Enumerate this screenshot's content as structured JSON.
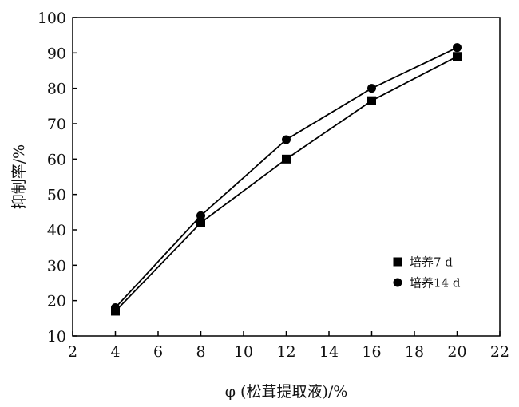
{
  "chart_data": {
    "type": "line",
    "xlabel": "φ (松茸提取液)/%",
    "ylabel": "抑制率/%",
    "xlim": [
      2,
      22
    ],
    "ylim": [
      10,
      100
    ],
    "xticks": [
      2,
      4,
      6,
      8,
      10,
      12,
      14,
      16,
      18,
      20,
      22
    ],
    "yticks": [
      10,
      20,
      30,
      40,
      50,
      60,
      70,
      80,
      90,
      100
    ],
    "grid": false,
    "legend_position": "lower-right",
    "series": [
      {
        "name": "培养7 d",
        "marker": "square",
        "color": "#000000",
        "x": [
          4,
          8,
          12,
          16,
          20
        ],
        "y": [
          17,
          42,
          60,
          76.5,
          89
        ]
      },
      {
        "name": "培养14 d",
        "marker": "circle",
        "color": "#000000",
        "x": [
          4,
          8,
          12,
          16,
          20
        ],
        "y": [
          18,
          44,
          65.5,
          80,
          91.5
        ]
      }
    ]
  }
}
